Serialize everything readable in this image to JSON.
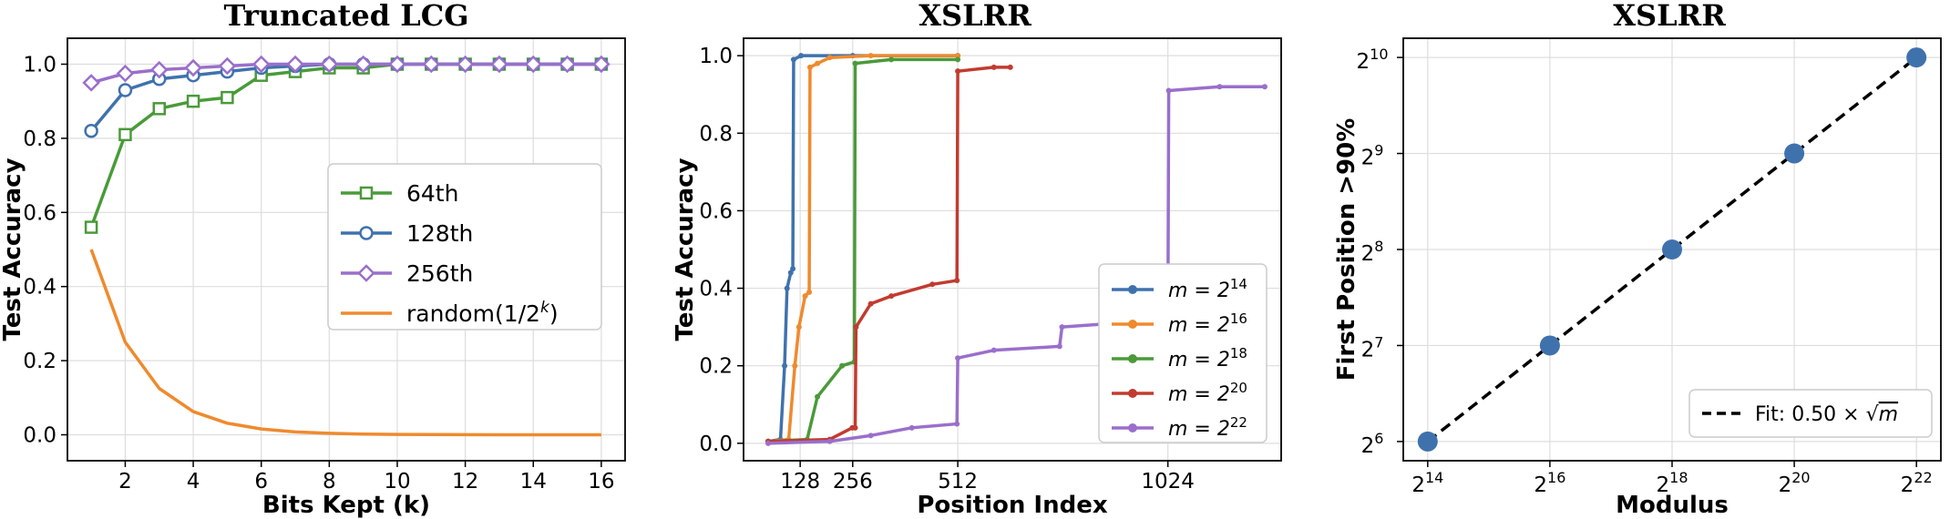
{
  "chart_data": [
    {
      "type": "line",
      "title": "Truncated LCG",
      "xlabel": "Bits Kept (k)",
      "ylabel": "Test Accuracy",
      "xlim": [
        0.3,
        16.7
      ],
      "ylim": [
        -0.07,
        1.07
      ],
      "xticks": [
        2,
        4,
        6,
        8,
        10,
        12,
        14,
        16
      ],
      "xtick_labels": [
        "2",
        "4",
        "6",
        "8",
        "10",
        "12",
        "14",
        "16"
      ],
      "yticks": [
        0.0,
        0.2,
        0.4,
        0.6,
        0.8,
        1.0
      ],
      "ytick_labels": [
        "0.0",
        "0.2",
        "0.4",
        "0.6",
        "0.8",
        "1.0"
      ],
      "grid": true,
      "legend_position": "center-right",
      "x": [
        1,
        2,
        3,
        4,
        5,
        6,
        7,
        8,
        9,
        10,
        11,
        12,
        13,
        14,
        15,
        16
      ],
      "series": [
        {
          "name": "64th",
          "color": "#4a9a3a",
          "marker": "square",
          "values": [
            0.56,
            0.81,
            0.88,
            0.9,
            0.91,
            0.97,
            0.98,
            0.99,
            0.99,
            1.0,
            1.0,
            1.0,
            1.0,
            1.0,
            1.0,
            1.0
          ]
        },
        {
          "name": "128th",
          "color": "#3f72ad",
          "marker": "circle",
          "values": [
            0.82,
            0.93,
            0.96,
            0.97,
            0.98,
            0.99,
            0.995,
            1.0,
            1.0,
            1.0,
            1.0,
            1.0,
            1.0,
            1.0,
            1.0,
            1.0
          ]
        },
        {
          "name": "256th",
          "color": "#9a6fcb",
          "marker": "diamond",
          "values": [
            0.95,
            0.975,
            0.985,
            0.99,
            0.995,
            1.0,
            1.0,
            1.0,
            1.0,
            1.0,
            1.0,
            1.0,
            1.0,
            1.0,
            1.0,
            1.0
          ]
        },
        {
          "name": "random(1/2",
          "name_sup": "k",
          "name_tail": ")",
          "color": "#ef8a2e",
          "marker": "none",
          "values": [
            0.5,
            0.25,
            0.125,
            0.0625,
            0.03125,
            0.0156,
            0.0078,
            0.0039,
            0.002,
            0.001,
            0.0005,
            0.0002,
            0.0001,
            0.0001,
            0.0,
            0.0
          ]
        }
      ]
    },
    {
      "type": "line",
      "title": "XSLRR",
      "xlabel": "Position Index",
      "ylabel": "Test Accuracy",
      "xlim": [
        -10,
        1300
      ],
      "ylim": [
        -0.045,
        1.045
      ],
      "xticks": [
        128,
        256,
        512,
        1024
      ],
      "xtick_labels": [
        "128",
        "256",
        "512",
        "1024"
      ],
      "yticks": [
        0.0,
        0.2,
        0.4,
        0.6,
        0.8,
        1.0
      ],
      "ytick_labels": [
        "0.0",
        "0.2",
        "0.4",
        "0.6",
        "0.8",
        "1.0"
      ],
      "grid": true,
      "legend_position": "lower-right",
      "series": [
        {
          "name_base": "m = 2",
          "name_sup": "14",
          "color": "#3f72ad",
          "points": [
            [
              50,
              0.005
            ],
            [
              80,
              0.01
            ],
            [
              90,
              0.2
            ],
            [
              96,
              0.4
            ],
            [
              105,
              0.44
            ],
            [
              110,
              0.45
            ],
            [
              112,
              0.99
            ],
            [
              130,
              1.0
            ],
            [
              256,
              1.0
            ],
            [
              512,
              1.0
            ]
          ]
        },
        {
          "name_base": "m = 2",
          "name_sup": "16",
          "color": "#ef8a2e",
          "points": [
            [
              50,
              0.005
            ],
            [
              100,
              0.01
            ],
            [
              115,
              0.2
            ],
            [
              125,
              0.3
            ],
            [
              140,
              0.38
            ],
            [
              150,
              0.39
            ],
            [
              152,
              0.97
            ],
            [
              170,
              0.98
            ],
            [
              200,
              0.995
            ],
            [
              300,
              1.0
            ],
            [
              512,
              1.0
            ]
          ]
        },
        {
          "name_base": "m = 2",
          "name_sup": "18",
          "color": "#4a9a3a",
          "points": [
            [
              50,
              0.005
            ],
            [
              145,
              0.01
            ],
            [
              170,
              0.12
            ],
            [
              230,
              0.2
            ],
            [
              260,
              0.21
            ],
            [
              262,
              0.98
            ],
            [
              350,
              0.99
            ],
            [
              512,
              0.99
            ]
          ]
        },
        {
          "name_base": "m = 2",
          "name_sup": "20",
          "color": "#c23b2f",
          "points": [
            [
              50,
              0.005
            ],
            [
              200,
              0.01
            ],
            [
              255,
              0.04
            ],
            [
              262,
              0.04
            ],
            [
              264,
              0.3
            ],
            [
              300,
              0.36
            ],
            [
              350,
              0.38
            ],
            [
              450,
              0.41
            ],
            [
              510,
              0.42
            ],
            [
              512,
              0.96
            ],
            [
              600,
              0.97
            ],
            [
              640,
              0.97
            ]
          ]
        },
        {
          "name_base": "m = 2",
          "name_sup": "22",
          "color": "#9a6fcb",
          "points": [
            [
              50,
              0.0
            ],
            [
              200,
              0.005
            ],
            [
              300,
              0.02
            ],
            [
              400,
              0.04
            ],
            [
              510,
              0.05
            ],
            [
              512,
              0.22
            ],
            [
              600,
              0.24
            ],
            [
              760,
              0.25
            ],
            [
              766,
              0.3
            ],
            [
              900,
              0.31
            ],
            [
              1024,
              0.31
            ],
            [
              1026,
              0.91
            ],
            [
              1150,
              0.92
            ],
            [
              1260,
              0.92
            ]
          ]
        }
      ]
    },
    {
      "type": "scatter",
      "title": "XSLRR",
      "xlabel": "Modulus",
      "ylabel": "First Position >90%",
      "x_log2": [
        14,
        16,
        18,
        20,
        22
      ],
      "y_log2": [
        6,
        7,
        8,
        9,
        10
      ],
      "xtick_labels": [
        {
          "base": "2",
          "sup": "14"
        },
        {
          "base": "2",
          "sup": "16"
        },
        {
          "base": "2",
          "sup": "18"
        },
        {
          "base": "2",
          "sup": "20"
        },
        {
          "base": "2",
          "sup": "22"
        }
      ],
      "ytick_labels": [
        {
          "base": "2",
          "sup": "6"
        },
        {
          "base": "2",
          "sup": "7"
        },
        {
          "base": "2",
          "sup": "8"
        },
        {
          "base": "2",
          "sup": "9"
        },
        {
          "base": "2",
          "sup": "10"
        }
      ],
      "scale": "log2",
      "xlim_log2": [
        13.6,
        22.4
      ],
      "ylim_log2": [
        5.8,
        10.2
      ],
      "grid": true,
      "point_color": "#3f72ad",
      "fit": {
        "label_prefix": "Fit: 0.50 × ",
        "label_sqrt": "√",
        "label_var": "m",
        "color": "#000000",
        "style": "dashed",
        "coef": 0.5
      },
      "legend_position": "lower-right"
    }
  ]
}
